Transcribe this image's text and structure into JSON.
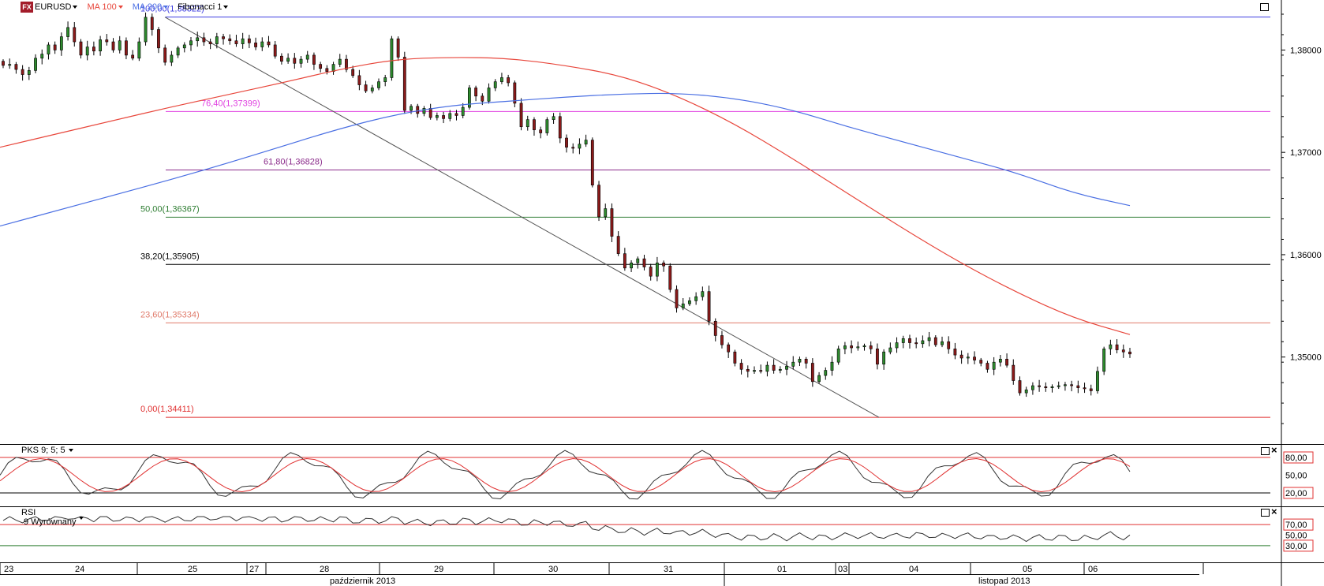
{
  "toolbar": {
    "logo": "FX",
    "symbol": "EURUSD",
    "ma100": "MA 100",
    "ma200": "MA 200",
    "fib": "Fibonacci 1"
  },
  "colors": {
    "bullish": "#2e8b2e",
    "bearish": "#8b1a1a",
    "ma100": "#e8473c",
    "ma200": "#4a6fe3",
    "fib100": "#3f3fe0",
    "fib764": "#e040e0",
    "fib618": "#8a2b8a",
    "fib50": "#2e7d32",
    "fib382": "#000000",
    "fib236": "#e07a6a",
    "fib0": "#e03030"
  },
  "fib_levels": [
    {
      "label": "100,00(1,38322)",
      "price": 1.38322,
      "color": "#3f3fe0"
    },
    {
      "label": "76,40(1,37399)",
      "price": 1.37399,
      "color": "#e040e0"
    },
    {
      "label": "61,80(1,36828)",
      "price": 1.36828,
      "color": "#8a2b8a"
    },
    {
      "label": "50,00(1,36367)",
      "price": 1.36367,
      "color": "#2e7d32"
    },
    {
      "label": "38,20(1,35905)",
      "price": 1.35905,
      "color": "#000000"
    },
    {
      "label": "23,60(1,35334)",
      "price": 1.35334,
      "color": "#e07a6a"
    },
    {
      "label": "0,00(1,34411)",
      "price": 1.34411,
      "color": "#e03030"
    }
  ],
  "price_axis": {
    "ticks": [
      "1,38000",
      "1,37000",
      "1,36000",
      "1,35000"
    ],
    "tick_values": [
      1.38,
      1.37,
      1.36,
      1.35
    ]
  },
  "pks": {
    "label": "PKS 9; 5; 5",
    "ticks": [
      "80,00",
      "50,00",
      "20,00"
    ],
    "tick_values": [
      80,
      50,
      20
    ]
  },
  "rsi": {
    "label": "RSI",
    "sublabel": "9 Wyrównany",
    "ticks": [
      "70,00",
      "50,00",
      "30,00"
    ],
    "tick_values": [
      70,
      50,
      30
    ]
  },
  "time_axis": {
    "days": [
      "23",
      "24",
      "25",
      "27",
      "28",
      "29",
      "30",
      "31",
      "01",
      "03",
      "04",
      "05",
      "06"
    ],
    "months": [
      "październik 2013",
      "listopad 2013"
    ]
  },
  "chart_data": {
    "type": "candlestick",
    "symbol": "EURUSD",
    "xlabel": "",
    "ylabel": "",
    "ylim": [
      1.3415,
      1.3835
    ],
    "series": [
      {
        "name": "MA 100",
        "values": [
          1.3705,
          1.3718,
          1.3731,
          1.3744,
          1.3756,
          1.3768,
          1.3781,
          1.3791,
          1.3793,
          1.3792,
          1.3785,
          1.3775,
          1.3755,
          1.3728,
          1.3695,
          1.366,
          1.3625,
          1.3592,
          1.3563,
          1.3538,
          1.3522
        ]
      },
      {
        "name": "MA 200",
        "values": [
          1.3628,
          1.3643,
          1.3658,
          1.3673,
          1.3689,
          1.3706,
          1.3723,
          1.3737,
          1.3746,
          1.375,
          1.3754,
          1.3757,
          1.3758,
          1.3753,
          1.3742,
          1.3725,
          1.371,
          1.3695,
          1.368,
          1.366,
          1.3648
        ]
      }
    ],
    "closes": [
      1.3785,
      1.3786,
      1.3781,
      1.3776,
      1.378,
      1.3792,
      1.3796,
      1.3805,
      1.38,
      1.3813,
      1.3822,
      1.3808,
      1.3795,
      1.3803,
      1.3799,
      1.381,
      1.3808,
      1.38,
      1.3809,
      1.3795,
      1.3792,
      1.3808,
      1.3832,
      1.382,
      1.3802,
      1.3788,
      1.3795,
      1.3802,
      1.3805,
      1.3809,
      1.3812,
      1.3808,
      1.3806,
      1.3813,
      1.3811,
      1.3809,
      1.3806,
      1.3811,
      1.3807,
      1.3803,
      1.3808,
      1.3805,
      1.3794,
      1.3789,
      1.3792,
      1.3787,
      1.3791,
      1.3795,
      1.3786,
      1.3782,
      1.3779,
      1.3786,
      1.3791,
      1.3781,
      1.3775,
      1.3766,
      1.376,
      1.3763,
      1.3769,
      1.3773,
      1.3811,
      1.3793,
      1.3741,
      1.3745,
      1.3738,
      1.3743,
      1.3734,
      1.3736,
      1.3733,
      1.3738,
      1.3736,
      1.3744,
      1.3763,
      1.3755,
      1.375,
      1.3763,
      1.3769,
      1.3773,
      1.3768,
      1.3748,
      1.3725,
      1.3732,
      1.3722,
      1.3719,
      1.3732,
      1.3735,
      1.3714,
      1.3705,
      1.3704,
      1.3708,
      1.3712,
      1.3668,
      1.3637,
      1.3645,
      1.3618,
      1.3601,
      1.3587,
      1.3592,
      1.3596,
      1.3588,
      1.3579,
      1.3592,
      1.3589,
      1.3566,
      1.3548,
      1.3552,
      1.3555,
      1.3559,
      1.3564,
      1.3535,
      1.3521,
      1.3512,
      1.3505,
      1.3494,
      1.3488,
      1.3486,
      1.3487,
      1.3486,
      1.3492,
      1.3487,
      1.3488,
      1.3491,
      1.3495,
      1.3498,
      1.3494,
      1.3476,
      1.3482,
      1.3487,
      1.3495,
      1.3508,
      1.3511,
      1.3509,
      1.351,
      1.3511,
      1.3508,
      1.3493,
      1.3505,
      1.3509,
      1.3514,
      1.3518,
      1.3514,
      1.3513,
      1.3516,
      1.3519,
      1.3512,
      1.3515,
      1.3508,
      1.3502,
      1.3499,
      1.35,
      1.3497,
      1.3494,
      1.3488,
      1.3495,
      1.3498,
      1.3492,
      1.3477,
      1.3465,
      1.3468,
      1.3472,
      1.3471,
      1.347,
      1.3471,
      1.3472,
      1.3473,
      1.3472,
      1.347,
      1.3469,
      1.3467,
      1.3486,
      1.3508,
      1.3512,
      1.3507,
      1.3505,
      1.3503
    ],
    "annotations": [
      "100,00(1,38322)",
      "76,40(1,37399)",
      "61,80(1,36828)",
      "50,00(1,36367)",
      "38,20(1,35905)",
      "23,60(1,35334)",
      "0,00(1,34411)"
    ]
  }
}
